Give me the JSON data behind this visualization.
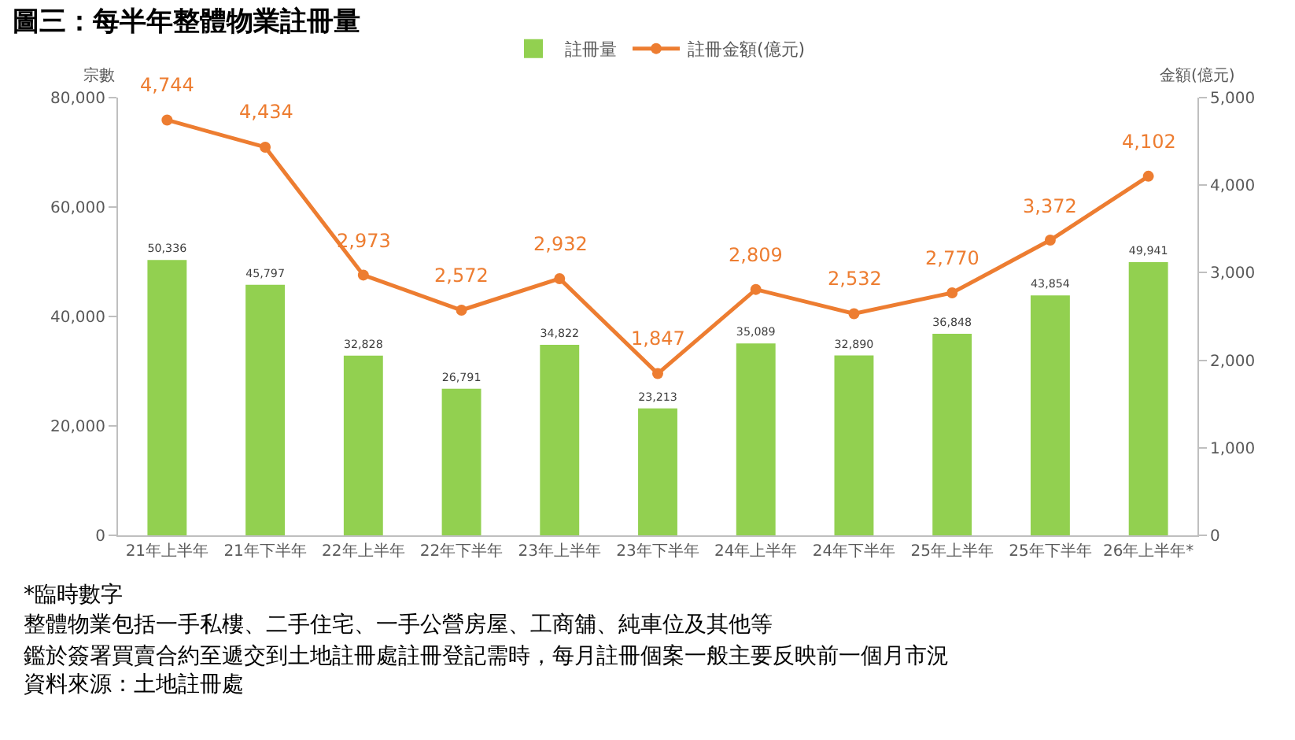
{
  "chart_data": {
    "type": "bar",
    "title": "圖三：每半年整體物業註冊量",
    "ylabel": "宗數",
    "y2label": "金額(億元)",
    "categories": [
      "21年上半年",
      "21年下半年",
      "22年上半年",
      "22年下半年",
      "23年上半年",
      "23年下半年",
      "24年上半年",
      "24年下半年",
      "25年上半年",
      "25年下半年",
      "26年上半年*"
    ],
    "series": [
      {
        "name": "註冊量",
        "color": "#92d050",
        "values": [
          50336,
          45797,
          32828,
          26791,
          34822,
          23213,
          35089,
          32890,
          36848,
          43854,
          49941
        ],
        "value_labels": [
          "50,336",
          "45,797",
          "32,828",
          "26,791",
          "34,822",
          "23,213",
          "35,089",
          "32,890",
          "36,848",
          "43,854",
          "49,941"
        ]
      },
      {
        "name": "註冊金額(億元)",
        "type": "line",
        "axis": "y2",
        "color": "#ed7d31",
        "marker": "circle",
        "values": [
          4744,
          4434,
          2973,
          2572,
          2932,
          1847,
          2809,
          2532,
          2770,
          3372,
          4102
        ],
        "value_labels": [
          "4,744",
          "4,434",
          "2,973",
          "2,572",
          "2,932",
          "1,847",
          "2,809",
          "2,532",
          "2,770",
          "3,372",
          "4,102"
        ]
      }
    ],
    "ylim": [
      0,
      80000
    ],
    "yticks": [
      {
        "value": 0,
        "label": "0"
      },
      {
        "value": 20000,
        "label": "20,000"
      },
      {
        "value": 40000,
        "label": "40,000"
      },
      {
        "value": 60000,
        "label": "60,000"
      },
      {
        "value": 80000,
        "label": "80,000"
      }
    ],
    "y2lim": [
      0,
      5000
    ],
    "y2ticks": [
      {
        "value": 0,
        "label": "0"
      },
      {
        "value": 1000,
        "label": "1,000"
      },
      {
        "value": 2000,
        "label": "2,000"
      },
      {
        "value": 3000,
        "label": "3,000"
      },
      {
        "value": 4000,
        "label": "4,000"
      },
      {
        "value": 5000,
        "label": "5,000"
      }
    ],
    "grid": false,
    "legend": "top",
    "annotations": [
      "*臨時數字",
      "整體物業包括一手私樓、二手住宅、一手公營房屋、工商舖、純車位及其他等",
      "鑑於簽署買賣合約至遞交到土地註冊處註冊登記需時，每月註冊個案一般主要反映前一個月市況",
      "資料來源：土地註冊處"
    ]
  }
}
